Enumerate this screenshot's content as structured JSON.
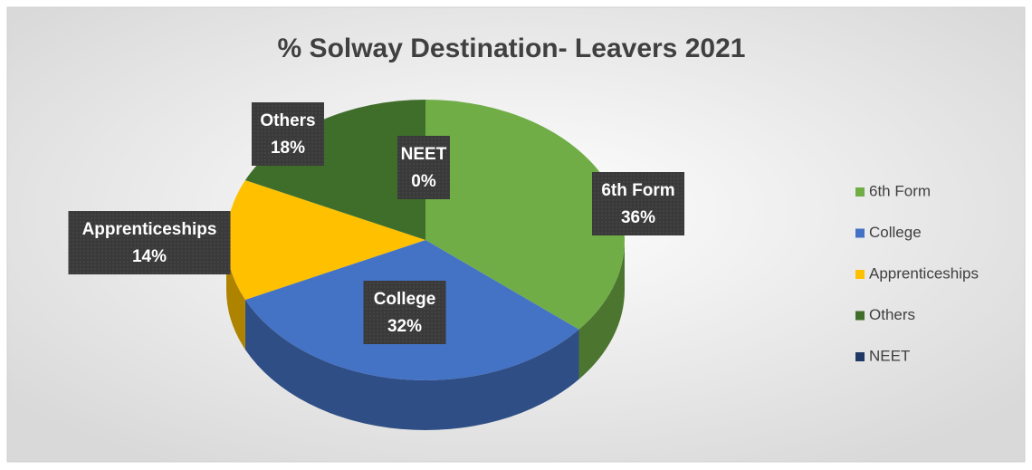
{
  "chart_data": {
    "type": "pie3d",
    "title": "% Solway Destination- Leavers 2021",
    "categories": [
      "6th Form",
      "College",
      "Apprenticeships",
      "Others",
      "NEET"
    ],
    "values": [
      36,
      32,
      14,
      18,
      0
    ],
    "value_labels": [
      "36%",
      "32%",
      "14%",
      "18%",
      "0%"
    ],
    "colors": [
      "#70ad47",
      "#4472c4",
      "#ffc000",
      "#3f6e2b",
      "#203864"
    ],
    "legend": "right"
  }
}
